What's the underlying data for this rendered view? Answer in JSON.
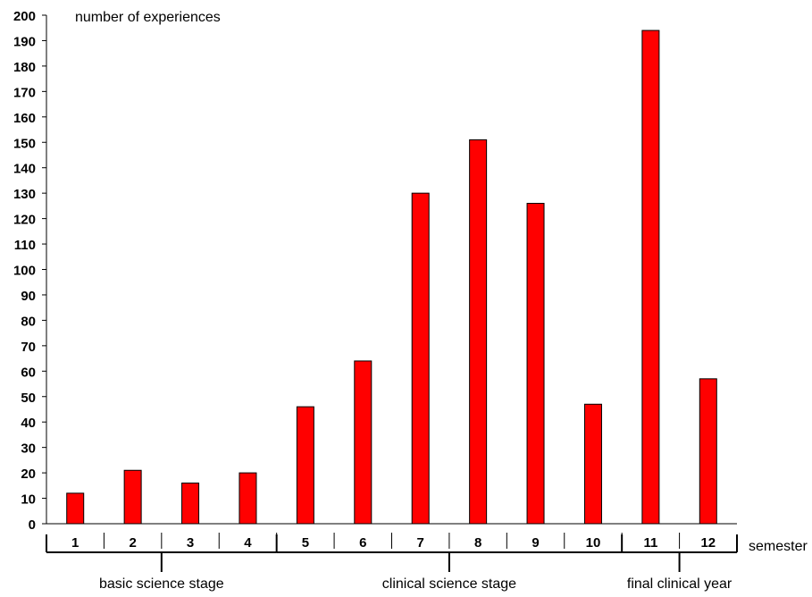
{
  "chart_data": {
    "type": "bar",
    "title": "",
    "ylabel": "number of experiences",
    "xlabel": "semester",
    "categories": [
      "1",
      "2",
      "3",
      "4",
      "5",
      "6",
      "7",
      "8",
      "9",
      "10",
      "11",
      "12"
    ],
    "series": [
      {
        "values": [
          12,
          21,
          16,
          20,
          46,
          64,
          130,
          151,
          126,
          47,
          194,
          57
        ]
      }
    ],
    "ylim": [
      0,
      200
    ],
    "yticks": [
      "0",
      "10",
      "20",
      "30",
      "40",
      "50",
      "60",
      "70",
      "80",
      "90",
      "100",
      "110",
      "120",
      "130",
      "140",
      "150",
      "160",
      "170",
      "180",
      "190",
      "200"
    ],
    "grid": false,
    "legend": "none",
    "bar_color": "#ff0000",
    "bar_edge_color": "#000000",
    "groups": [
      {
        "label": "basic science stage",
        "start": "1",
        "end": "4"
      },
      {
        "label": "clinical science stage",
        "start": "5",
        "end": "10"
      },
      {
        "label": "final clinical year",
        "start": "11",
        "end": "12"
      }
    ]
  }
}
